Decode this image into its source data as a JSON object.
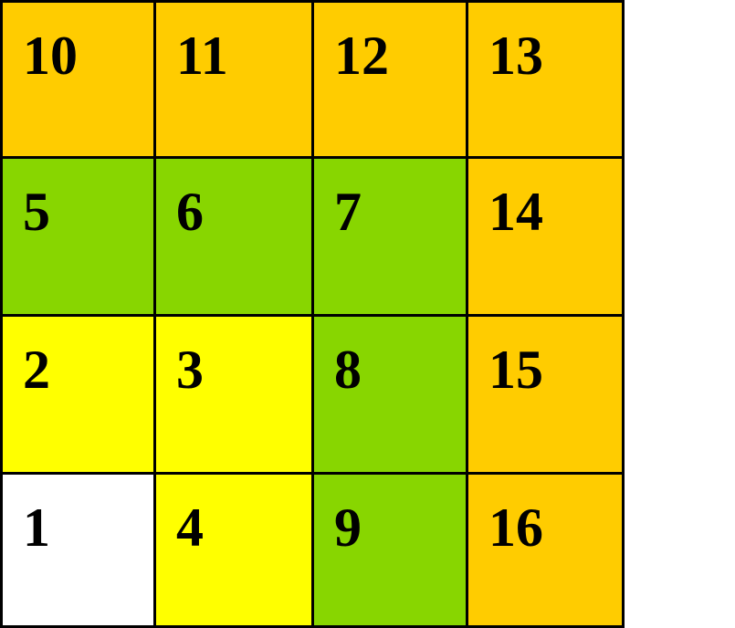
{
  "colors": {
    "orange": "#FFCC00",
    "green": "#88D600",
    "yellow": "#FFFF00",
    "white": "#FFFFFF"
  },
  "grid": {
    "rows": [
      [
        {
          "label": "10",
          "color": "orange"
        },
        {
          "label": "11",
          "color": "orange"
        },
        {
          "label": "12",
          "color": "orange"
        },
        {
          "label": "13",
          "color": "orange"
        }
      ],
      [
        {
          "label": "5",
          "color": "green"
        },
        {
          "label": "6",
          "color": "green"
        },
        {
          "label": "7",
          "color": "green"
        },
        {
          "label": "14",
          "color": "orange"
        }
      ],
      [
        {
          "label": "2",
          "color": "yellow"
        },
        {
          "label": "3",
          "color": "yellow"
        },
        {
          "label": "8",
          "color": "green"
        },
        {
          "label": "15",
          "color": "orange"
        }
      ],
      [
        {
          "label": "1",
          "color": "white"
        },
        {
          "label": "4",
          "color": "yellow"
        },
        {
          "label": "9",
          "color": "green"
        },
        {
          "label": "16",
          "color": "orange"
        }
      ]
    ]
  }
}
